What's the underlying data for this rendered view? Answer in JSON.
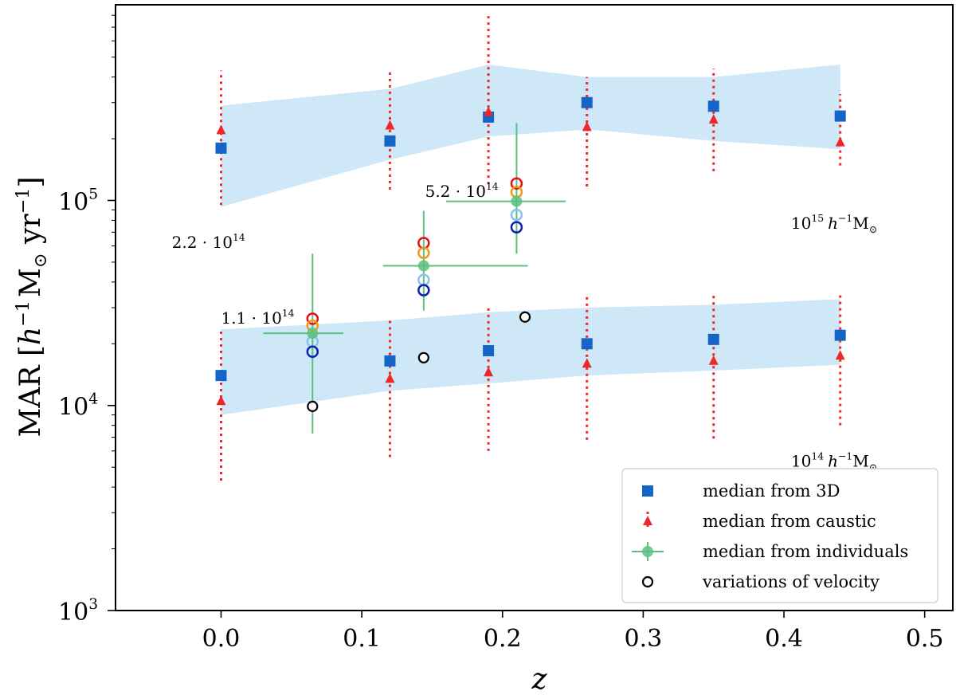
{
  "chart_data": {
    "type": "scatter",
    "title": "",
    "xlabel": "z",
    "ylabel": "MAR [h^-1 M_sun yr^-1]",
    "ylabel_parts": {
      "main": "MAR [",
      "h": "h",
      "h_exp": "−1",
      "msun": "M",
      "sun": "⊙",
      "yr": " yr",
      "yr_exp": "−1",
      "close": "]"
    },
    "xlim": [
      -0.075,
      0.52
    ],
    "ylim": [
      1000,
      900000
    ],
    "yscale": "log",
    "xticks": [
      0.0,
      0.1,
      0.2,
      0.3,
      0.4,
      0.5
    ],
    "xtick_labels": [
      "0.0",
      "0.1",
      "0.2",
      "0.3",
      "0.4",
      "0.5"
    ],
    "yticks": [
      {
        "value": 1000,
        "base": "10",
        "exp": "3"
      },
      {
        "value": 10000,
        "base": "10",
        "exp": "4"
      },
      {
        "value": 100000,
        "base": "10",
        "exp": "5"
      }
    ],
    "bands": [
      {
        "name": "10^15 band",
        "color": "#cfe8f8",
        "x": [
          0.0,
          0.12,
          0.19,
          0.26,
          0.35,
          0.44
        ],
        "lower": [
          93000,
          158000,
          205000,
          222000,
          195000,
          178000
        ],
        "upper": [
          290000,
          350000,
          460000,
          400000,
          400000,
          460000
        ]
      },
      {
        "name": "10^14 band",
        "color": "#cfe8f8",
        "x": [
          0.0,
          0.12,
          0.19,
          0.26,
          0.35,
          0.44
        ],
        "lower": [
          9000,
          11800,
          12800,
          14000,
          14800,
          15800
        ],
        "upper": [
          23500,
          26000,
          28500,
          30000,
          31000,
          33000
        ]
      }
    ],
    "series": [
      {
        "name": "median from 3D",
        "marker": "square",
        "color": "#1565c8",
        "x": [
          0.0,
          0.12,
          0.19,
          0.26,
          0.35,
          0.44,
          0.0,
          0.12,
          0.19,
          0.26,
          0.35,
          0.44
        ],
        "y": [
          180000,
          195000,
          255000,
          300000,
          288000,
          258000,
          14000,
          16500,
          18500,
          20000,
          21000,
          22000
        ]
      },
      {
        "name": "median from caustic",
        "marker": "triangle",
        "color": "#ee2828",
        "x": [
          0.0,
          0.12,
          0.19,
          0.26,
          0.35,
          0.44,
          0.0,
          0.12,
          0.19,
          0.26,
          0.35,
          0.44
        ],
        "y": [
          220000,
          232000,
          270000,
          228000,
          248000,
          192000,
          10500,
          13500,
          14500,
          16000,
          16500,
          17500
        ],
        "yerr_low": [
          95000,
          113000,
          120000,
          117000,
          139000,
          148000,
          4300,
          5600,
          6000,
          6800,
          6900,
          8000
        ],
        "yerr_high": [
          430000,
          430000,
          810000,
          400000,
          440000,
          330000,
          24000,
          27000,
          31000,
          35000,
          35000,
          35000
        ]
      },
      {
        "name": "median from individuals",
        "marker": "circle",
        "color": "#5cbf80",
        "x": [
          0.065,
          0.144,
          0.21
        ],
        "y": [
          22500,
          48000,
          99000
        ],
        "xerr_low": [
          0.03,
          0.115,
          0.16
        ],
        "xerr_high": [
          0.087,
          0.218,
          0.245
        ],
        "yerr_low": [
          7300,
          29000,
          55000
        ],
        "yerr_high": [
          55000,
          89000,
          238000
        ]
      },
      {
        "name": "variations of velocity",
        "marker": "open-circle",
        "color": "#000000",
        "x": [
          0.065,
          0.144,
          0.216
        ],
        "y": [
          9900,
          17100,
          27000
        ]
      }
    ],
    "group_points": [
      {
        "x": 0.065,
        "red": 26500,
        "orange": 24500,
        "lightblue": 20500,
        "navy": 18300
      },
      {
        "x": 0.144,
        "red": 62000,
        "orange": 55500,
        "lightblue": 41000,
        "navy": 36500
      },
      {
        "x": 0.21,
        "red": 121000,
        "orange": 110000,
        "lightblue": 85000,
        "navy": 74000
      }
    ],
    "group_point_colors": {
      "red": "#e81010",
      "orange": "#f39a12",
      "lightblue": "#88c4e8",
      "navy": "#1020b0"
    },
    "annotations": [
      {
        "mantissa": "1.1",
        "base": "10",
        "exp": "14",
        "x": 0.0,
        "y": 26500
      },
      {
        "mantissa": "2.2",
        "base": "10",
        "exp": "14",
        "x": -0.035,
        "y": 62000
      },
      {
        "mantissa": "5.2",
        "base": "10",
        "exp": "14",
        "x": 0.145,
        "y": 110000
      }
    ],
    "mass_labels": [
      {
        "base": "10",
        "exp": "15",
        "unit_h": "h",
        "unit_exp": "−1",
        "unit_m": "M",
        "unit_sun": "⊙",
        "x": 0.405,
        "y": 78000
      },
      {
        "base": "10",
        "exp": "14",
        "unit_h": "h",
        "unit_exp": "−1",
        "unit_m": "M",
        "unit_sun": "⊙",
        "x": 0.405,
        "y": 5400
      }
    ],
    "legend": {
      "position": "lower-right",
      "entries": [
        "median from 3D",
        "median from caustic",
        "median from individuals",
        "variations of velocity"
      ]
    }
  }
}
